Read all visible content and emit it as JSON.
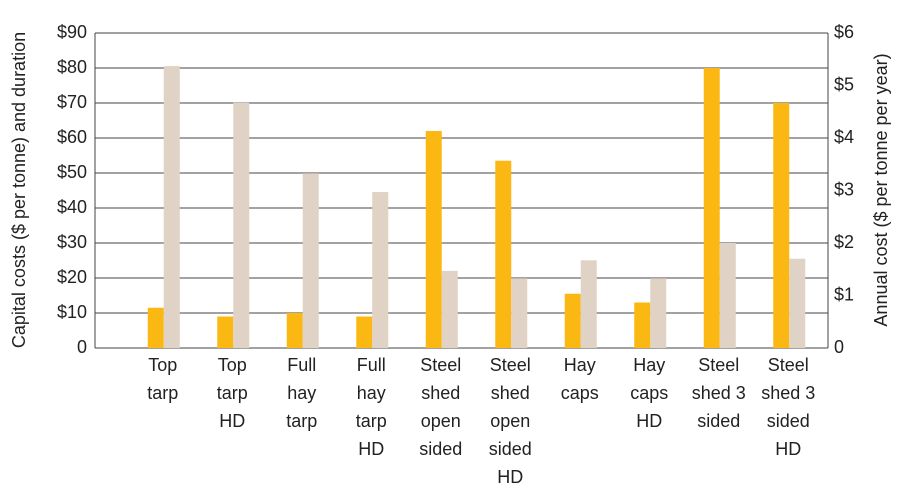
{
  "chart_data": {
    "type": "bar",
    "categories": [
      "Top\ntarp",
      "Top\ntarp\nHD",
      "Full\nhay\ntarp",
      "Full\nhay\ntarp\nHD",
      "Steel\nshed\nopen\nsided",
      "Steel\nshed\nopen\nsided\nHD",
      "Hay\ncaps",
      "Hay\ncaps\nHD",
      "Steel\nshed 3\nsided",
      "Steel\nshed 3\nsided\nHD"
    ],
    "series": [
      {
        "color": "#fbb812",
        "values": [
          11.5,
          9,
          10,
          9,
          62,
          53.5,
          15.5,
          13,
          80,
          70
        ]
      },
      {
        "color": "#e0d2c4",
        "axis": "y2",
        "values": [
          5.37,
          4.67,
          3.33,
          2.97,
          1.47,
          1.33,
          1.67,
          1.33,
          2,
          1.7
        ]
      }
    ],
    "ylabel": "Capital costs ($ per tonne) and duration",
    "y2label": "Annual cost ($ per tonne per year)",
    "ylim": [
      0,
      90
    ],
    "yticks": [
      0,
      {
        "value": 10,
        "label": "$10"
      },
      {
        "value": 20,
        "label": "$20"
      },
      {
        "value": 30,
        "label": "$30"
      },
      {
        "value": 40,
        "label": "$40"
      },
      {
        "value": 50,
        "label": "$50"
      },
      {
        "value": 60,
        "label": "$60"
      },
      {
        "value": 70,
        "label": "$70"
      },
      {
        "value": 80,
        "label": "$80"
      },
      {
        "value": 90,
        "label": "$90"
      }
    ],
    "y2lim": [
      0,
      6
    ],
    "y2ticks": [
      0,
      {
        "value": 1,
        "label": "$1"
      },
      {
        "value": 2,
        "label": "$2"
      },
      {
        "value": 3,
        "label": "$3"
      },
      {
        "value": 4,
        "label": "$4"
      },
      {
        "value": 5,
        "label": "$5"
      },
      {
        "value": 6,
        "label": "$6"
      }
    ],
    "grid": true
  }
}
